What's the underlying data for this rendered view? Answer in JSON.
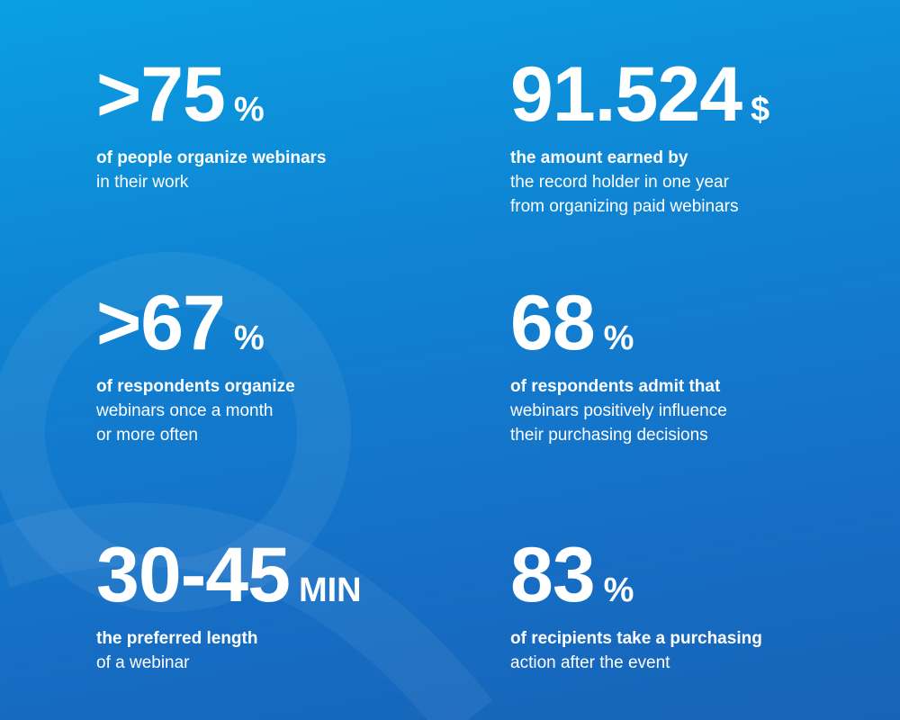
{
  "stats": [
    {
      "value": ">75",
      "unit": "%",
      "bold": [
        "of people organize webinars"
      ],
      "text": [
        "in their work"
      ]
    },
    {
      "value": "91.524",
      "unit": "$",
      "bold": [
        "the amount earned by"
      ],
      "text": [
        "the record holder in one year",
        "from organizing paid webinars"
      ]
    },
    {
      "value": ">67",
      "unit": "%",
      "bold": [
        "of respondents organize"
      ],
      "text": [
        "webinars once a month",
        "or more often"
      ]
    },
    {
      "value": "68",
      "unit": "%",
      "bold": [
        "of respondents admit that"
      ],
      "text": [
        "webinars positively influence",
        "their purchasing decisions"
      ]
    },
    {
      "value": "30-45",
      "unit": "MIN",
      "bold": [
        "the preferred length"
      ],
      "text": [
        "of a webinar"
      ]
    },
    {
      "value": "83",
      "unit": "%",
      "bold": [
        "of recipients take a purchasing"
      ],
      "text": [
        "action after the event"
      ]
    }
  ]
}
